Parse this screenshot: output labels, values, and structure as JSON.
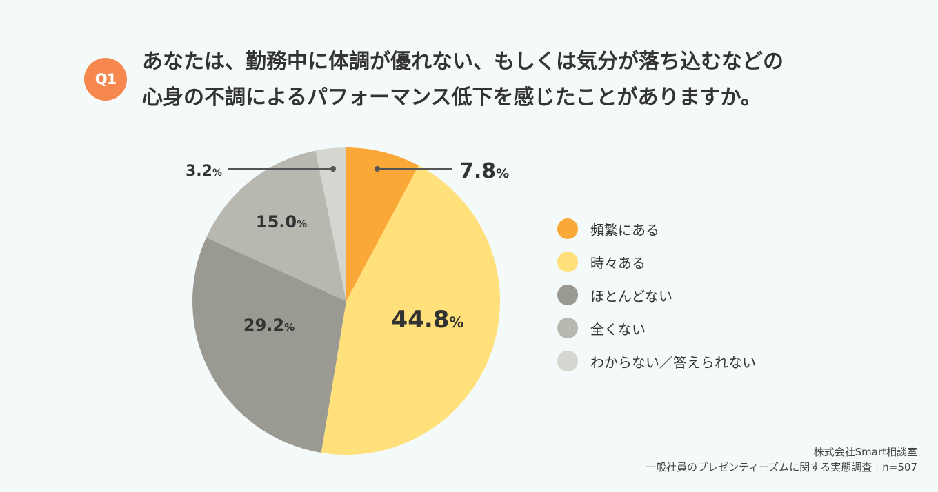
{
  "question": {
    "badge": "Q1",
    "line1": "あなたは、勤務中に体調が優れない、もしくは気分が落ち込むなどの",
    "line2": "心身の不調によるパフォーマンス低下を感じたことがありますか。"
  },
  "chart_data": {
    "type": "pie",
    "title": "",
    "legend_position": "right",
    "unit": "%",
    "slices": [
      {
        "name": "頻繁にある",
        "value": 7.8,
        "label": "7.8",
        "color": "#faa938"
      },
      {
        "name": "時々ある",
        "value": 44.8,
        "label": "44.8",
        "color": "#ffe07a"
      },
      {
        "name": "ほとんどない",
        "value": 29.2,
        "label": "29.2",
        "color": "#9b9a92"
      },
      {
        "name": "全くない",
        "value": 15.0,
        "label": "15.0",
        "color": "#b8b7b0"
      },
      {
        "name": "わからない／答えられない",
        "value": 3.2,
        "label": "3.2",
        "color": "#d6d6d0"
      }
    ]
  },
  "credit": {
    "line1": "株式会社Smart相談室",
    "line2": "一般社員のプレゼンティーズムに関する実態調査｜n=507"
  }
}
